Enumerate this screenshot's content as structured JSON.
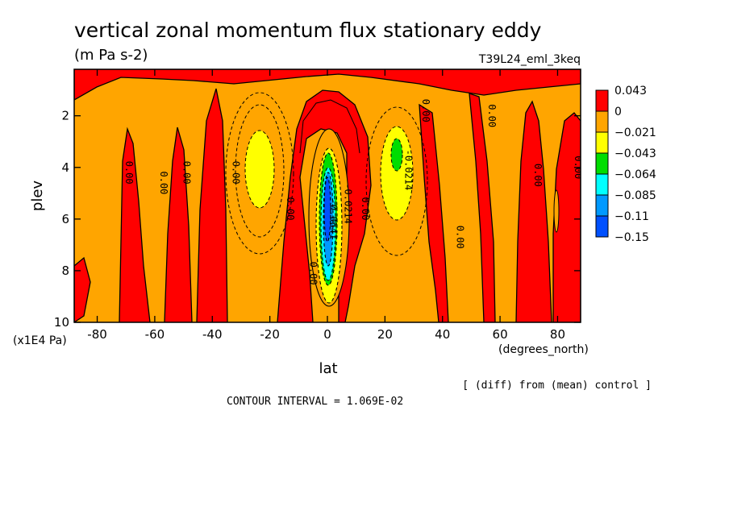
{
  "chart_data": {
    "type": "heatmap",
    "title": "vertical zonal momentum flux stationary eddy",
    "subtitle": "(m Pa s-2)",
    "run_label": "T39L24_eml_3keq",
    "xlabel": "lat",
    "x_units": "(degrees_north)",
    "ylabel": "plev",
    "y_units": "(x1E4 Pa)",
    "xlim": [
      -88,
      88
    ],
    "ylim": [
      0.2,
      10
    ],
    "y_inverted": true,
    "x_ticks": [
      -80,
      -60,
      -40,
      -20,
      0,
      20,
      40,
      60,
      80
    ],
    "x_tick_labels": [
      "-80",
      "-60",
      "-40",
      "-20",
      "0",
      "20",
      "40",
      "60",
      "80"
    ],
    "y_ticks": [
      2,
      4,
      6,
      8,
      10
    ],
    "y_tick_labels": [
      "2",
      "4",
      "6",
      "8",
      "10"
    ],
    "note_right": "[ (diff) from (mean) control ]",
    "contour_interval": "CONTOUR INTERVAL = 1.069E-02",
    "colorbar": {
      "labels": [
        "0.043",
        "0",
        "−0.021",
        "−0.043",
        "−0.064",
        "−0.085",
        "−0.11",
        "−0.15"
      ],
      "colors": [
        "#ff0000",
        "#ffa500",
        "#ffff00",
        "#00dd00",
        "#00ffff",
        "#0099ff",
        "#0050ff"
      ]
    },
    "contour_labels": [
      {
        "text": "0.00",
        "lat": -70,
        "p": 4.2
      },
      {
        "text": "0.00",
        "lat": -58,
        "p": 4.6
      },
      {
        "text": "0.00",
        "lat": -50,
        "p": 4.2
      },
      {
        "text": "0.00",
        "lat": -33,
        "p": 4.2
      },
      {
        "text": "0.00",
        "lat": -14,
        "p": 5.6
      },
      {
        "text": "0.00",
        "lat": -6,
        "p": 8.1
      },
      {
        "text": "0.00",
        "lat": 12,
        "p": 5.6
      },
      {
        "text": "0.00",
        "lat": 33,
        "p": 1.8
      },
      {
        "text": "0.00",
        "lat": 45,
        "p": 6.7
      },
      {
        "text": "0.00",
        "lat": 56,
        "p": 2.0
      },
      {
        "text": "0.00",
        "lat": 72,
        "p": 4.3
      },
      {
        "text": "0.00",
        "lat": 86,
        "p": 4.0
      },
      {
        "text": "-0.0214",
        "lat": 27,
        "p": 4.1
      },
      {
        "text": "-0.0214",
        "lat": 6,
        "p": 5.4
      },
      {
        "text": "-0.0641",
        "lat": 1,
        "p": 6.0
      }
    ],
    "anomaly_features": [
      {
        "sign": "negative",
        "lat": 0,
        "p": 6.0,
        "min_value": -0.15
      },
      {
        "sign": "negative",
        "lat": -25,
        "p": 4.2,
        "min_value": -0.043
      },
      {
        "sign": "negative",
        "lat": 25,
        "p": 4.2,
        "min_value": -0.064
      },
      {
        "sign": "positive",
        "lat": 0,
        "p": 2.2,
        "max_value": 0.043
      }
    ]
  }
}
